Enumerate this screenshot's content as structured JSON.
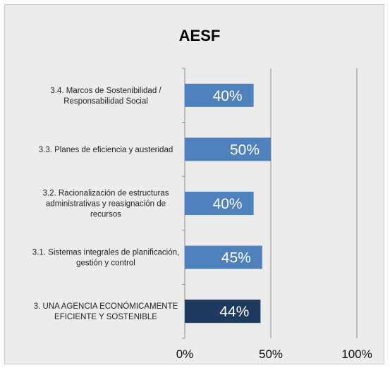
{
  "chart_data": {
    "type": "bar",
    "orientation": "horizontal",
    "title": "AESF",
    "xlabel": "",
    "ylabel": "",
    "xlim": [
      0,
      100
    ],
    "x_ticks": [
      "0%",
      "50%",
      "100%"
    ],
    "grid": true,
    "legend": "none",
    "categories": [
      [
        "3.4. Marcos de Sostenibilidad /",
        "Responsabilidad Social"
      ],
      [
        "3.3. Planes de eficiencia y austeridad"
      ],
      [
        "3.2. Racionalización de estructuras",
        "administrativas y reasignación de",
        "recursos"
      ],
      [
        "3.1.  Sistemas integrales de planificación,",
        "gestión y control"
      ],
      [
        "3. UNA AGENCIA ECONÓMICAMENTE",
        "EFICIENTE Y SOSTENIBLE"
      ]
    ],
    "values": [
      40,
      50,
      40,
      45,
      44
    ],
    "value_labels": [
      "40%",
      "50%",
      "40%",
      "45%",
      "44%"
    ],
    "colors": [
      "#4f81bd",
      "#4f81bd",
      "#4f81bd",
      "#4f81bd",
      "#1f3a5f"
    ]
  }
}
